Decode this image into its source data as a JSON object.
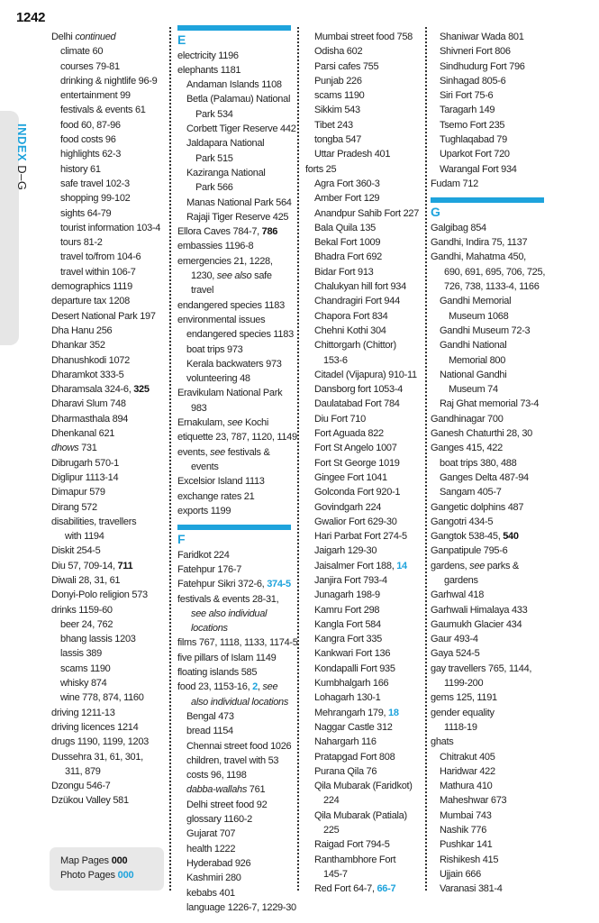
{
  "page_number": "1242",
  "side_tab": {
    "index_label": "INDEX",
    "range_label": "D–G"
  },
  "colors": {
    "accent": "#1ea3dc",
    "text": "#222222",
    "tab_bg": "#e6e6e6"
  },
  "columns": [
    [
      {
        "lvl": 0,
        "parts": [
          {
            "text": "Delhi "
          },
          {
            "text": "continued",
            "style": "i"
          }
        ]
      },
      {
        "lvl": 1,
        "text": "climate 60"
      },
      {
        "lvl": 1,
        "text": "courses 79-81"
      },
      {
        "lvl": 1,
        "text": "drinking & nightlife 96-9"
      },
      {
        "lvl": 1,
        "text": "entertainment 99"
      },
      {
        "lvl": 1,
        "text": "festivals & events 61"
      },
      {
        "lvl": 1,
        "text": "food 60, 87-96"
      },
      {
        "lvl": 1,
        "text": "food costs 96"
      },
      {
        "lvl": 1,
        "text": "highlights 62-3"
      },
      {
        "lvl": 1,
        "text": "history 61"
      },
      {
        "lvl": 1,
        "text": "safe travel 102-3"
      },
      {
        "lvl": 1,
        "text": "shopping 99-102"
      },
      {
        "lvl": 1,
        "text": "sights 64-79"
      },
      {
        "lvl": 1,
        "text": "tourist information 103-4"
      },
      {
        "lvl": 1,
        "text": "tours 81-2"
      },
      {
        "lvl": 1,
        "text": "travel to/from 104-6"
      },
      {
        "lvl": 1,
        "text": "travel within 106-7"
      },
      {
        "lvl": 0,
        "text": "demographics 1119"
      },
      {
        "lvl": 0,
        "text": "departure tax 1208"
      },
      {
        "lvl": 0,
        "text": "Desert National Park 197"
      },
      {
        "lvl": 0,
        "text": "Dha Hanu 256"
      },
      {
        "lvl": 0,
        "text": "Dhankar 352"
      },
      {
        "lvl": 0,
        "text": "Dhanushkodi 1072"
      },
      {
        "lvl": 0,
        "text": "Dharamkot 333-5"
      },
      {
        "lvl": 0,
        "parts": [
          {
            "text": "Dharamsala 324-6, "
          },
          {
            "text": "325",
            "style": "b"
          }
        ]
      },
      {
        "lvl": 0,
        "text": "Dharavi Slum 748"
      },
      {
        "lvl": 0,
        "text": "Dharmasthala 894"
      },
      {
        "lvl": 0,
        "text": "Dhenkanal 621"
      },
      {
        "lvl": 0,
        "parts": [
          {
            "text": "dhows",
            "style": "i"
          },
          {
            "text": " 731"
          }
        ]
      },
      {
        "lvl": 0,
        "text": "Dibrugarh 570-1"
      },
      {
        "lvl": 0,
        "text": "Diglipur 1113-14"
      },
      {
        "lvl": 0,
        "text": "Dimapur 579"
      },
      {
        "lvl": 0,
        "text": "Dirang 572"
      },
      {
        "lvl": 0,
        "text": "disabilities, travellers"
      },
      {
        "lvl": 2,
        "text": "with 1194"
      },
      {
        "lvl": 0,
        "text": "Diskit 254-5"
      },
      {
        "lvl": 0,
        "parts": [
          {
            "text": "Diu 57, 709-14, "
          },
          {
            "text": "711",
            "style": "b"
          }
        ]
      },
      {
        "lvl": 0,
        "text": "Diwali 28, 31, 61"
      },
      {
        "lvl": 0,
        "text": "Donyi-Polo religion 573"
      },
      {
        "lvl": 0,
        "text": "drinks 1159-60"
      },
      {
        "lvl": 1,
        "text": "beer 24, 762"
      },
      {
        "lvl": 1,
        "text": "bhang lassis 1203"
      },
      {
        "lvl": 1,
        "text": "lassis 389"
      },
      {
        "lvl": 1,
        "text": "scams 1190"
      },
      {
        "lvl": 1,
        "text": "whisky 874"
      },
      {
        "lvl": 1,
        "text": "wine 778, 874, 1160"
      },
      {
        "lvl": 0,
        "text": "driving 1211-13"
      },
      {
        "lvl": 0,
        "text": "driving licences 1214"
      },
      {
        "lvl": 0,
        "text": "drugs 1190, 1199, 1203"
      },
      {
        "lvl": 0,
        "text": "Dussehra 31, 61, 301,"
      },
      {
        "lvl": 2,
        "text": "311, 879"
      },
      {
        "lvl": 0,
        "text": "Dzongu 546-7"
      },
      {
        "lvl": 0,
        "text": "Dzükou Valley 581"
      }
    ],
    [
      {
        "header": "E"
      },
      {
        "lvl": 0,
        "text": "electricity 1196"
      },
      {
        "lvl": 0,
        "text": "elephants 1181"
      },
      {
        "lvl": 1,
        "text": "Andaman Islands 1108"
      },
      {
        "lvl": 1,
        "text": "Betla (Palamau) National"
      },
      {
        "lvl": 3,
        "text": "Park 534"
      },
      {
        "lvl": 1,
        "text": "Corbett Tiger Reserve 442"
      },
      {
        "lvl": 1,
        "text": "Jaldapara National"
      },
      {
        "lvl": 3,
        "text": "Park 515"
      },
      {
        "lvl": 1,
        "text": "Kaziranga National"
      },
      {
        "lvl": 3,
        "text": "Park 566"
      },
      {
        "lvl": 1,
        "text": "Manas National Park 564"
      },
      {
        "lvl": 1,
        "text": "Rajaji Tiger Reserve 425"
      },
      {
        "lvl": 0,
        "parts": [
          {
            "text": "Ellora Caves 784-7, "
          },
          {
            "text": "786",
            "style": "b"
          }
        ]
      },
      {
        "lvl": 0,
        "text": "embassies 1196-8"
      },
      {
        "lvl": 0,
        "text": "emergencies 21, 1228,"
      },
      {
        "lvl": 2,
        "parts": [
          {
            "text": "1230, "
          },
          {
            "text": "see also",
            "style": "i"
          },
          {
            "text": " safe"
          }
        ]
      },
      {
        "lvl": 2,
        "text": "travel"
      },
      {
        "lvl": 0,
        "text": "endangered species 1183"
      },
      {
        "lvl": 0,
        "text": "environmental issues"
      },
      {
        "lvl": 1,
        "text": "endangered species 1183"
      },
      {
        "lvl": 1,
        "text": "boat trips 973"
      },
      {
        "lvl": 1,
        "text": "Kerala backwaters 973"
      },
      {
        "lvl": 1,
        "text": "volunteering 48"
      },
      {
        "lvl": 0,
        "text": "Eravikulam National Park"
      },
      {
        "lvl": 2,
        "text": "983"
      },
      {
        "lvl": 0,
        "parts": [
          {
            "text": "Ernakulam, "
          },
          {
            "text": "see",
            "style": "i"
          },
          {
            "text": " Kochi"
          }
        ]
      },
      {
        "lvl": 0,
        "text": "etiquette 23, 787, 1120, 1149"
      },
      {
        "lvl": 0,
        "parts": [
          {
            "text": "events, "
          },
          {
            "text": "see",
            "style": "i"
          },
          {
            "text": " festivals &"
          }
        ]
      },
      {
        "lvl": 2,
        "text": "events"
      },
      {
        "lvl": 0,
        "text": "Excelsior Island 1113"
      },
      {
        "lvl": 0,
        "text": "exchange rates 21"
      },
      {
        "lvl": 0,
        "text": "exports 1199"
      },
      {
        "header": "F"
      },
      {
        "lvl": 0,
        "text": "Faridkot 224"
      },
      {
        "lvl": 0,
        "text": "Fatehpur 176-7"
      },
      {
        "lvl": 0,
        "parts": [
          {
            "text": "Fatehpur Sikri 372-6, "
          },
          {
            "text": "374-5",
            "style": "blue"
          }
        ]
      },
      {
        "lvl": 0,
        "text": "festivals & events 28-31,"
      },
      {
        "lvl": 2,
        "parts": [
          {
            "text": "see also individual",
            "style": "i"
          }
        ]
      },
      {
        "lvl": 2,
        "parts": [
          {
            "text": "locations",
            "style": "i"
          }
        ]
      },
      {
        "lvl": 0,
        "text": "films 767, 1118, 1133, 1174-5"
      },
      {
        "lvl": 0,
        "text": "five pillars of Islam 1149"
      },
      {
        "lvl": 0,
        "text": "floating islands 585"
      },
      {
        "lvl": 0,
        "parts": [
          {
            "text": "food 23, 1153-16, "
          },
          {
            "text": "2",
            "style": "blue"
          },
          {
            "text": ", "
          },
          {
            "text": "see",
            "style": "i"
          }
        ]
      },
      {
        "lvl": 2,
        "parts": [
          {
            "text": "also individual locations",
            "style": "i"
          }
        ]
      },
      {
        "lvl": 1,
        "text": "Bengal 473"
      },
      {
        "lvl": 1,
        "text": "bread 1154"
      },
      {
        "lvl": 1,
        "text": "Chennai street food 1026"
      },
      {
        "lvl": 1,
        "text": "children, travel with 53"
      },
      {
        "lvl": 1,
        "text": "costs 96, 1198"
      },
      {
        "lvl": 1,
        "parts": [
          {
            "text": "dabba-wallahs",
            "style": "i"
          },
          {
            "text": " 761"
          }
        ]
      },
      {
        "lvl": 1,
        "text": "Delhi street food 92"
      },
      {
        "lvl": 1,
        "text": "glossary 1160-2"
      },
      {
        "lvl": 1,
        "text": "Gujarat 707"
      },
      {
        "lvl": 1,
        "text": "health 1222"
      },
      {
        "lvl": 1,
        "text": "Hyderabad 926"
      },
      {
        "lvl": 1,
        "text": "Kashmiri 280"
      },
      {
        "lvl": 1,
        "text": "kebabs 401"
      },
      {
        "lvl": 1,
        "text": "language 1226-7, 1229-30"
      }
    ],
    [
      {
        "lvl": 1,
        "text": "Mumbai street food 758"
      },
      {
        "lvl": 1,
        "text": "Odisha 602"
      },
      {
        "lvl": 1,
        "text": "Parsi cafes 755"
      },
      {
        "lvl": 1,
        "text": "Punjab 226"
      },
      {
        "lvl": 1,
        "text": "scams 1190"
      },
      {
        "lvl": 1,
        "text": "Sikkim 543"
      },
      {
        "lvl": 1,
        "text": "Tibet 243"
      },
      {
        "lvl": 1,
        "text": "tongba 547"
      },
      {
        "lvl": 1,
        "text": "Uttar Pradesh 401"
      },
      {
        "lvl": 0,
        "text": "forts 25"
      },
      {
        "lvl": 1,
        "text": "Agra Fort 360-3"
      },
      {
        "lvl": 1,
        "text": "Amber Fort 129"
      },
      {
        "lvl": 1,
        "text": "Anandpur Sahib Fort 227"
      },
      {
        "lvl": 1,
        "text": "Bala Quila 135"
      },
      {
        "lvl": 1,
        "text": "Bekal Fort 1009"
      },
      {
        "lvl": 1,
        "text": "Bhadra Fort 692"
      },
      {
        "lvl": 1,
        "text": "Bidar Fort 913"
      },
      {
        "lvl": 1,
        "text": "Chalukyan hill fort 934"
      },
      {
        "lvl": 1,
        "text": "Chandragiri Fort 944"
      },
      {
        "lvl": 1,
        "text": "Chapora Fort 834"
      },
      {
        "lvl": 1,
        "text": "Chehni Kothi 304"
      },
      {
        "lvl": 1,
        "text": "Chittorgarh (Chittor)"
      },
      {
        "lvl": 3,
        "text": "153-6"
      },
      {
        "lvl": 1,
        "text": "Citadel (Vijapura) 910-11"
      },
      {
        "lvl": 1,
        "text": "Dansborg fort 1053-4"
      },
      {
        "lvl": 1,
        "text": "Daulatabad Fort 784"
      },
      {
        "lvl": 1,
        "text": "Diu Fort 710"
      },
      {
        "lvl": 1,
        "text": "Fort Aguada 822"
      },
      {
        "lvl": 1,
        "text": "Fort St Angelo 1007"
      },
      {
        "lvl": 1,
        "text": "Fort St George 1019"
      },
      {
        "lvl": 1,
        "text": "Gingee Fort 1041"
      },
      {
        "lvl": 1,
        "text": "Golconda Fort 920-1"
      },
      {
        "lvl": 1,
        "text": "Govindgarh 224"
      },
      {
        "lvl": 1,
        "text": "Gwalior Fort 629-30"
      },
      {
        "lvl": 1,
        "text": "Hari Parbat Fort 274-5"
      },
      {
        "lvl": 1,
        "text": "Jaigarh 129-30"
      },
      {
        "lvl": 1,
        "parts": [
          {
            "text": "Jaisalmer Fort 188, "
          },
          {
            "text": "14",
            "style": "blue"
          }
        ]
      },
      {
        "lvl": 1,
        "text": "Janjira Fort 793-4"
      },
      {
        "lvl": 1,
        "text": "Junagarh 198-9"
      },
      {
        "lvl": 1,
        "text": "Kamru Fort 298"
      },
      {
        "lvl": 1,
        "text": "Kangla Fort 584"
      },
      {
        "lvl": 1,
        "text": "Kangra Fort 335"
      },
      {
        "lvl": 1,
        "text": "Kankwari Fort 136"
      },
      {
        "lvl": 1,
        "text": "Kondapalli Fort 935"
      },
      {
        "lvl": 1,
        "text": "Kumbhalgarh 166"
      },
      {
        "lvl": 1,
        "text": "Lohagarh 130-1"
      },
      {
        "lvl": 1,
        "parts": [
          {
            "text": "Mehrangarh 179, "
          },
          {
            "text": "18",
            "style": "blue"
          }
        ]
      },
      {
        "lvl": 1,
        "text": "Naggar Castle 312"
      },
      {
        "lvl": 1,
        "text": "Nahargarh 116"
      },
      {
        "lvl": 1,
        "text": "Pratapgad Fort 808"
      },
      {
        "lvl": 1,
        "text": "Purana Qila 76"
      },
      {
        "lvl": 1,
        "text": "Qila Mubarak (Faridkot)"
      },
      {
        "lvl": 3,
        "text": "224"
      },
      {
        "lvl": 1,
        "text": "Qila Mubarak (Patiala)"
      },
      {
        "lvl": 3,
        "text": "225"
      },
      {
        "lvl": 1,
        "text": "Raigad Fort 794-5"
      },
      {
        "lvl": 1,
        "text": "Ranthambhore Fort"
      },
      {
        "lvl": 3,
        "text": "145-7"
      },
      {
        "lvl": 1,
        "parts": [
          {
            "text": "Red Fort 64-7, "
          },
          {
            "text": "66-7",
            "style": "blue"
          }
        ]
      }
    ],
    [
      {
        "lvl": 1,
        "text": "Shaniwar Wada 801"
      },
      {
        "lvl": 1,
        "text": "Shivneri Fort 806"
      },
      {
        "lvl": 1,
        "text": "Sindhudurg Fort 796"
      },
      {
        "lvl": 1,
        "text": "Sinhagad 805-6"
      },
      {
        "lvl": 1,
        "text": "Siri Fort 75-6"
      },
      {
        "lvl": 1,
        "text": "Taragarh 149"
      },
      {
        "lvl": 1,
        "text": "Tsemo Fort 235"
      },
      {
        "lvl": 1,
        "text": "Tughlaqabad 79"
      },
      {
        "lvl": 1,
        "text": "Uparkot Fort 720"
      },
      {
        "lvl": 1,
        "text": "Warangal Fort 934"
      },
      {
        "lvl": 0,
        "text": "Fudam 712"
      },
      {
        "header": "G"
      },
      {
        "lvl": 0,
        "text": "Galgibag 854"
      },
      {
        "lvl": 0,
        "text": "Gandhi, Indira 75, 1137"
      },
      {
        "lvl": 0,
        "text": "Gandhi, Mahatma 450,"
      },
      {
        "lvl": 2,
        "text": "690, 691, 695, 706, 725,"
      },
      {
        "lvl": 2,
        "text": "726, 738, 1133-4, 1166"
      },
      {
        "lvl": 1,
        "text": "Gandhi Memorial"
      },
      {
        "lvl": 3,
        "text": "Museum 1068"
      },
      {
        "lvl": 1,
        "text": "Gandhi Museum 72-3"
      },
      {
        "lvl": 1,
        "text": "Gandhi National"
      },
      {
        "lvl": 3,
        "text": "Memorial 800"
      },
      {
        "lvl": 1,
        "text": "National Gandhi"
      },
      {
        "lvl": 3,
        "text": "Museum 74"
      },
      {
        "lvl": 1,
        "text": "Raj Ghat memorial 73-4"
      },
      {
        "lvl": 0,
        "text": "Gandhinagar 700"
      },
      {
        "lvl": 0,
        "text": "Ganesh Chaturthi 28, 30"
      },
      {
        "lvl": 0,
        "text": "Ganges 415, 422"
      },
      {
        "lvl": 1,
        "text": "boat trips 380, 488"
      },
      {
        "lvl": 1,
        "text": "Ganges Delta 487-94"
      },
      {
        "lvl": 1,
        "text": "Sangam 405-7"
      },
      {
        "lvl": 0,
        "text": "Gangetic dolphins 487"
      },
      {
        "lvl": 0,
        "text": "Gangotri 434-5"
      },
      {
        "lvl": 0,
        "parts": [
          {
            "text": "Gangtok 538-45, "
          },
          {
            "text": "540",
            "style": "b"
          }
        ]
      },
      {
        "lvl": 0,
        "text": "Ganpatipule 795-6"
      },
      {
        "lvl": 0,
        "parts": [
          {
            "text": "gardens, "
          },
          {
            "text": "see",
            "style": "i"
          },
          {
            "text": " parks &"
          }
        ]
      },
      {
        "lvl": 2,
        "text": "gardens"
      },
      {
        "lvl": 0,
        "text": "Garhwal 418"
      },
      {
        "lvl": 0,
        "text": "Garhwali Himalaya 433"
      },
      {
        "lvl": 0,
        "text": "Gaumukh Glacier 434"
      },
      {
        "lvl": 0,
        "text": "Gaur 493-4"
      },
      {
        "lvl": 0,
        "text": "Gaya 524-5"
      },
      {
        "lvl": 0,
        "text": "gay travellers 765, 1144,"
      },
      {
        "lvl": 2,
        "text": "1199-200"
      },
      {
        "lvl": 0,
        "text": "gems 125, 1191"
      },
      {
        "lvl": 0,
        "text": "gender equality"
      },
      {
        "lvl": 2,
        "text": "1118-19"
      },
      {
        "lvl": 0,
        "text": "ghats"
      },
      {
        "lvl": 1,
        "text": "Chitrakut 405"
      },
      {
        "lvl": 1,
        "text": "Haridwar 422"
      },
      {
        "lvl": 1,
        "text": "Mathura 410"
      },
      {
        "lvl": 1,
        "text": "Maheshwar 673"
      },
      {
        "lvl": 1,
        "text": "Mumbai 743"
      },
      {
        "lvl": 1,
        "text": "Nashik 776"
      },
      {
        "lvl": 1,
        "text": "Pushkar 141"
      },
      {
        "lvl": 1,
        "text": "Rishikesh 415"
      },
      {
        "lvl": 1,
        "text": "Ujjain 666"
      },
      {
        "lvl": 1,
        "text": "Varanasi 381-4"
      }
    ]
  ],
  "footer": {
    "map_pages_label": "Map Pages",
    "map_pages_value": "000",
    "photo_pages_label": "Photo Pages",
    "photo_pages_value": "000"
  }
}
